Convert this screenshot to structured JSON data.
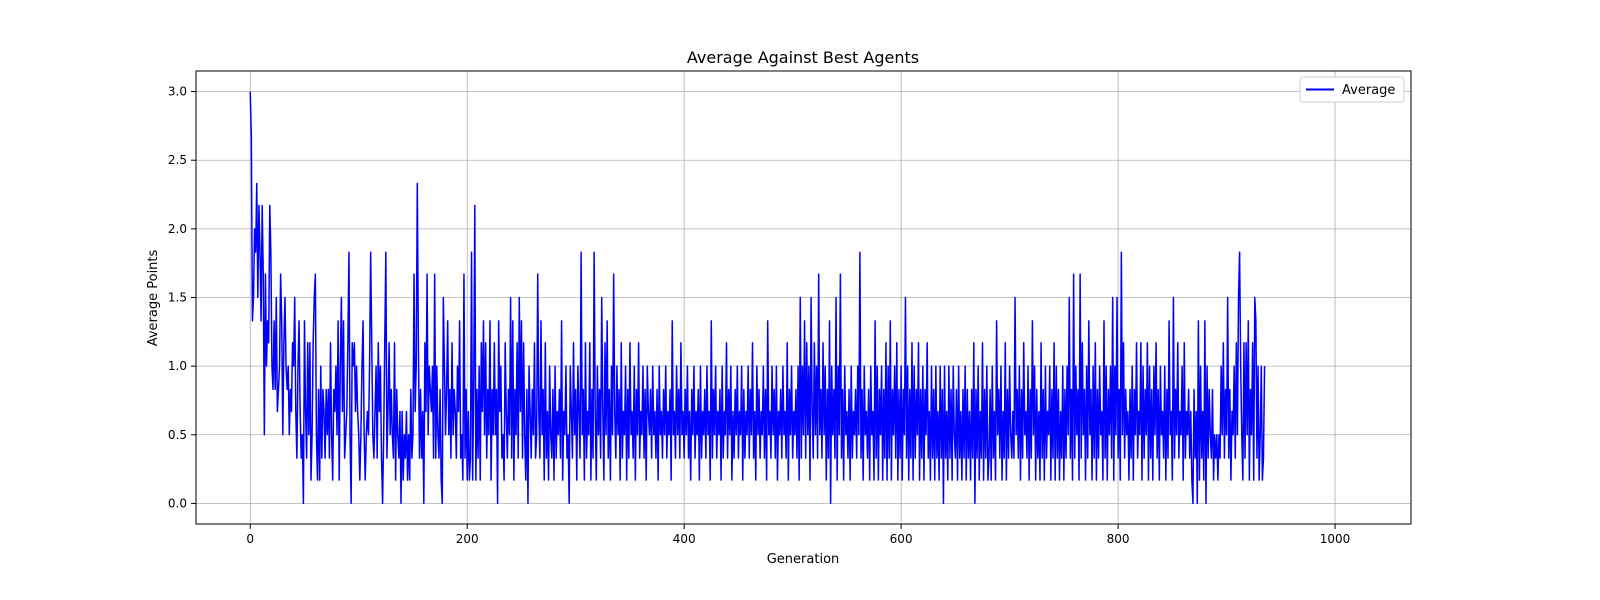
{
  "chart_data": {
    "type": "line",
    "title": "Average Against Best Agents",
    "xlabel": "Generation",
    "ylabel": "Average Points",
    "xlim": [
      -50,
      1070
    ],
    "ylim": [
      -0.15,
      3.15
    ],
    "xticks": [
      0,
      200,
      400,
      600,
      800,
      1000
    ],
    "xtick_labels": [
      "0",
      "200",
      "400",
      "600",
      "800",
      "1000"
    ],
    "yticks": [
      0.0,
      0.5,
      1.0,
      1.5,
      2.0,
      2.5,
      3.0
    ],
    "ytick_labels": [
      "0.0",
      "0.5",
      "1.0",
      "1.5",
      "2.0",
      "2.5",
      "3.0"
    ],
    "grid": true,
    "legend_position": "top-right",
    "series": [
      {
        "name": "Average",
        "color": "#0000ff",
        "x_start": 0,
        "x_step": 1,
        "values": [
          3.0,
          2.67,
          1.33,
          1.5,
          2.0,
          1.83,
          2.33,
          1.5,
          2.17,
          1.83,
          1.33,
          2.17,
          1.67,
          0.5,
          1.67,
          1.0,
          1.33,
          1.17,
          2.17,
          1.83,
          1.0,
          0.83,
          1.33,
          0.83,
          1.5,
          0.67,
          0.83,
          1.0,
          1.67,
          1.33,
          0.5,
          1.17,
          1.5,
          1.0,
          0.83,
          1.0,
          0.5,
          0.83,
          0.67,
          1.17,
          1.0,
          1.5,
          0.67,
          0.33,
          1.0,
          1.33,
          0.67,
          0.33,
          0.5,
          0.0,
          1.33,
          0.67,
          0.33,
          1.17,
          0.5,
          1.17,
          0.17,
          0.5,
          1.17,
          1.5,
          1.67,
          0.5,
          0.17,
          0.83,
          0.17,
          1.0,
          0.33,
          0.83,
          0.67,
          0.33,
          0.83,
          0.5,
          0.83,
          0.33,
          1.17,
          0.5,
          0.17,
          0.83,
          0.67,
          1.0,
          0.5,
          1.33,
          0.17,
          1.0,
          1.5,
          0.67,
          1.33,
          0.33,
          0.5,
          0.67,
          1.17,
          1.83,
          0.5,
          0.0,
          1.17,
          1.0,
          1.17,
          0.67,
          1.0,
          0.67,
          0.5,
          0.17,
          0.5,
          1.0,
          1.33,
          0.5,
          0.17,
          0.5,
          0.67,
          0.5,
          1.0,
          1.83,
          1.17,
          0.5,
          0.33,
          0.67,
          1.0,
          0.33,
          1.17,
          0.67,
          1.0,
          0.33,
          0.0,
          0.5,
          1.17,
          1.83,
          0.33,
          0.67,
          1.17,
          0.5,
          0.83,
          0.5,
          0.33,
          1.17,
          0.17,
          0.83,
          0.5,
          0.33,
          0.67,
          0.0,
          0.67,
          0.17,
          0.5,
          0.33,
          0.67,
          0.17,
          0.5,
          0.17,
          0.83,
          0.33,
          0.5,
          1.67,
          0.67,
          1.0,
          2.33,
          1.17,
          0.33,
          0.83,
          0.33,
          0.67,
          0.0,
          1.17,
          0.67,
          1.67,
          0.5,
          1.0,
          0.83,
          0.67,
          1.0,
          0.33,
          1.67,
          0.33,
          1.0,
          0.5,
          0.33,
          0.83,
          0.17,
          0.0,
          1.5,
          1.0,
          0.5,
          0.83,
          1.33,
          0.5,
          0.83,
          0.33,
          1.17,
          0.5,
          0.83,
          0.67,
          0.33,
          1.0,
          0.67,
          1.33,
          0.33,
          0.5,
          0.17,
          1.67,
          0.33,
          0.83,
          0.17,
          0.67,
          0.17,
          0.33,
          1.83,
          0.17,
          0.83,
          2.17,
          0.17,
          0.83,
          0.33,
          1.0,
          0.17,
          1.17,
          0.67,
          1.33,
          0.5,
          1.17,
          0.33,
          0.83,
          0.5,
          1.33,
          0.17,
          0.83,
          0.5,
          1.17,
          0.5,
          0.83,
          0.0,
          1.33,
          0.67,
          1.0,
          0.33,
          0.5,
          0.17,
          1.17,
          0.67,
          0.33,
          0.83,
          0.5,
          1.5,
          0.33,
          1.33,
          0.17,
          0.83,
          0.5,
          1.17,
          0.33,
          1.5,
          0.67,
          1.33,
          0.33,
          1.17,
          0.5,
          0.17,
          0.83,
          0.0,
          1.0,
          0.67,
          0.33,
          0.83,
          0.5,
          1.17,
          0.33,
          0.5,
          1.67,
          0.67,
          0.33,
          1.33,
          0.5,
          0.83,
          0.17,
          1.17,
          0.33,
          0.67,
          0.17,
          1.0,
          0.5,
          0.33,
          0.83,
          0.17,
          1.0,
          0.33,
          0.67,
          0.5,
          0.83,
          0.33,
          1.33,
          0.17,
          0.67,
          0.5,
          1.0,
          0.33,
          0.5,
          0.0,
          1.0,
          0.67,
          0.33,
          1.17,
          0.5,
          0.83,
          0.17,
          1.0,
          0.67,
          0.33,
          1.83,
          0.5,
          0.83,
          0.17,
          1.17,
          0.33,
          0.67,
          0.5,
          1.17,
          0.17,
          0.83,
          0.33,
          1.83,
          0.67,
          0.17,
          1.0,
          0.5,
          0.83,
          0.33,
          1.5,
          0.67,
          0.17,
          1.17,
          0.5,
          1.33,
          0.33,
          0.83,
          0.17,
          1.0,
          0.5,
          1.67,
          0.67,
          0.33,
          1.0,
          0.5,
          0.83,
          0.17,
          1.17,
          0.33,
          0.67,
          0.5,
          1.0,
          0.17,
          0.83,
          0.33,
          1.17,
          0.5,
          0.67,
          0.33,
          1.0,
          0.17,
          0.83,
          0.5,
          1.17,
          0.33,
          0.67,
          0.5,
          1.0,
          0.33,
          0.83,
          0.17,
          1.0,
          0.67,
          0.5,
          0.83,
          0.33,
          1.0,
          0.5,
          0.67,
          0.33,
          0.83,
          0.17,
          1.0,
          0.5,
          0.67,
          0.33,
          0.83,
          0.5,
          1.0,
          0.33,
          0.67,
          0.5,
          0.83,
          0.17,
          1.33,
          0.5,
          0.67,
          0.33,
          1.0,
          0.5,
          0.83,
          0.33,
          1.17,
          0.5,
          0.67,
          0.33,
          0.83,
          0.5,
          1.0,
          0.33,
          0.67,
          0.17,
          0.83,
          0.5,
          1.0,
          0.33,
          0.67,
          0.5,
          0.83,
          0.17,
          1.0,
          0.33,
          0.67,
          0.5,
          0.83,
          0.33,
          1.0,
          0.5,
          0.67,
          0.17,
          1.33,
          0.33,
          0.83,
          0.5,
          1.0,
          0.33,
          0.67,
          0.5,
          0.83,
          0.17,
          1.0,
          0.33,
          0.67,
          0.5,
          1.17,
          0.33,
          0.83,
          0.5,
          1.0,
          0.17,
          0.67,
          0.33,
          0.83,
          0.5,
          1.0,
          0.33,
          0.67,
          0.5,
          1.0,
          0.17,
          0.83,
          0.33,
          0.67,
          0.5,
          1.0,
          0.33,
          0.83,
          0.5,
          1.17,
          0.33,
          0.67,
          0.17,
          1.0,
          0.5,
          0.83,
          0.33,
          0.67,
          0.5,
          1.0,
          0.33,
          0.83,
          0.17,
          1.33,
          0.5,
          0.67,
          0.33,
          1.0,
          0.5,
          0.83,
          0.33,
          1.0,
          0.17,
          0.67,
          0.5,
          0.83,
          0.33,
          1.0,
          0.5,
          0.67,
          0.33,
          1.17,
          0.17,
          0.83,
          0.5,
          1.0,
          0.33,
          0.67,
          0.5,
          0.83,
          0.33,
          1.0,
          0.17,
          1.5,
          0.33,
          1.0,
          0.5,
          1.33,
          0.33,
          1.17,
          0.5,
          1.0,
          0.17,
          1.5,
          0.67,
          0.33,
          1.17,
          0.5,
          1.0,
          0.33,
          1.67,
          0.5,
          0.83,
          0.33,
          1.17,
          0.5,
          1.0,
          0.17,
          0.83,
          0.33,
          1.33,
          0.0,
          1.0,
          0.5,
          0.83,
          0.33,
          1.5,
          0.17,
          1.0,
          0.5,
          1.67,
          0.33,
          0.83,
          0.17,
          1.0,
          0.5,
          0.67,
          0.33,
          0.83,
          0.17,
          1.0,
          0.33,
          0.67,
          0.5,
          0.83,
          0.33,
          1.0,
          0.5,
          1.83,
          0.33,
          0.83,
          0.17,
          1.0,
          0.5,
          0.67,
          0.33,
          0.83,
          0.17,
          1.0,
          0.5,
          0.67,
          0.17,
          1.33,
          0.33,
          1.0,
          0.17,
          0.83,
          0.5,
          1.0,
          0.17,
          0.83,
          0.33,
          1.17,
          0.17,
          1.0,
          0.33,
          1.33,
          0.17,
          0.83,
          0.5,
          1.0,
          0.33,
          1.17,
          0.17,
          0.83,
          0.33,
          1.0,
          0.17,
          0.83,
          0.5,
          1.5,
          0.33,
          1.0,
          0.17,
          0.83,
          0.33,
          1.17,
          0.17,
          1.0,
          0.33,
          0.83,
          0.5,
          1.17,
          0.17,
          0.83,
          0.33,
          1.0,
          0.17,
          0.83,
          0.5,
          1.17,
          0.33,
          0.67,
          0.17,
          1.0,
          0.33,
          0.83,
          0.17,
          1.0,
          0.33,
          0.67,
          0.17,
          1.0,
          0.33,
          0.83,
          0.0,
          1.0,
          0.33,
          0.67,
          0.17,
          1.0,
          0.33,
          0.83,
          0.17,
          1.0,
          0.5,
          0.33,
          0.83,
          0.17,
          1.0,
          0.33,
          0.67,
          0.17,
          0.83,
          0.33,
          1.0,
          0.17,
          0.83,
          0.33,
          0.67,
          0.17,
          0.83,
          0.33,
          1.17,
          0.0,
          0.83,
          0.33,
          1.0,
          0.17,
          0.67,
          0.33,
          1.17,
          0.17,
          0.83,
          0.33,
          1.0,
          0.17,
          0.33,
          0.83,
          0.17,
          1.0,
          0.33,
          0.67,
          0.17,
          1.33,
          0.5,
          0.83,
          0.33,
          1.0,
          0.17,
          0.67,
          0.33,
          1.17,
          0.17,
          0.83,
          0.33,
          1.0,
          0.5,
          0.33,
          0.67,
          0.33,
          1.5,
          0.5,
          0.83,
          0.33,
          1.0,
          0.17,
          0.83,
          0.33,
          1.17,
          0.5,
          0.67,
          0.33,
          1.0,
          0.17,
          0.83,
          0.33,
          1.33,
          0.5,
          1.0,
          0.17,
          0.83,
          0.33,
          0.67,
          0.17,
          1.17,
          0.33,
          0.83,
          0.17,
          1.0,
          0.33,
          0.67,
          0.5,
          1.0,
          0.17,
          0.83,
          0.33,
          1.17,
          0.17,
          1.0,
          0.33,
          0.83,
          0.17,
          0.67,
          0.33,
          1.0,
          0.17,
          0.83,
          0.33,
          1.0,
          0.5,
          1.5,
          0.33,
          0.83,
          0.17,
          1.67,
          0.33,
          1.0,
          0.5,
          0.83,
          0.17,
          1.67,
          0.33,
          1.17,
          0.5,
          0.83,
          0.17,
          1.0,
          0.33,
          1.33,
          0.5,
          0.83,
          0.17,
          1.0,
          0.33,
          1.17,
          0.17,
          0.83,
          0.33,
          1.0,
          0.5,
          0.67,
          0.17,
          1.33,
          0.33,
          1.0,
          0.17,
          0.83,
          0.5,
          1.0,
          0.33,
          1.5,
          0.17,
          1.0,
          0.5,
          1.5,
          0.33,
          0.83,
          0.17,
          1.83,
          0.5,
          1.17,
          0.33,
          0.83,
          0.5,
          0.67,
          0.17,
          0.83,
          0.33,
          1.0,
          0.17,
          0.83,
          0.5,
          1.17,
          0.33,
          0.67,
          0.5,
          1.17,
          0.17,
          1.0,
          0.33,
          0.83,
          0.5,
          1.17,
          0.17,
          1.0,
          0.33,
          0.83,
          0.17,
          1.0,
          0.5,
          1.17,
          0.33,
          0.83,
          0.17,
          1.0,
          0.5,
          0.67,
          0.33,
          1.0,
          0.17,
          0.83,
          0.33,
          1.33,
          0.5,
          0.67,
          0.17,
          1.5,
          0.33,
          0.83,
          0.5,
          1.17,
          0.33,
          0.67,
          0.5,
          1.0,
          0.17,
          1.17,
          0.33,
          0.67,
          0.5,
          0.83,
          0.33,
          0.67,
          0.17,
          0.0,
          0.83,
          0.33,
          0.67,
          0.0,
          1.33,
          0.17,
          1.0,
          0.33,
          0.67,
          0.17,
          1.33,
          0.0,
          1.0,
          0.33,
          0.83,
          0.5,
          0.33,
          0.83,
          0.17,
          0.5,
          0.33,
          0.5,
          0.17,
          0.5,
          0.33,
          1.0,
          0.5,
          1.17,
          0.33,
          0.83,
          0.5,
          1.5,
          0.33,
          0.83,
          0.17,
          0.67,
          0.5,
          1.0,
          0.33,
          1.17,
          0.5,
          1.5,
          1.83,
          1.0,
          0.5,
          0.17,
          1.17,
          0.33,
          1.17,
          0.5,
          1.33,
          0.17,
          0.83,
          0.5,
          1.17,
          0.17,
          1.5,
          1.33,
          0.33,
          1.0,
          0.17,
          0.5,
          1.0,
          0.17,
          0.33,
          1.0
        ]
      }
    ]
  }
}
